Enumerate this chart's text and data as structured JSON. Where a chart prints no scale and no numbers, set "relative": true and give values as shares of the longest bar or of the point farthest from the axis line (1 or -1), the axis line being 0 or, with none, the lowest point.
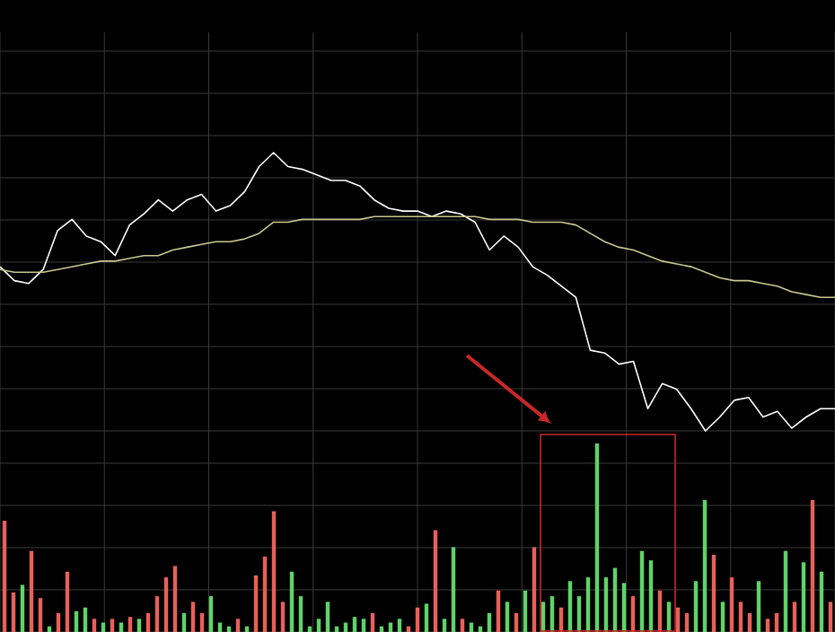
{
  "chart_data": [
    {
      "type": "line",
      "relative": true,
      "grid": true,
      "categories": [
        null,
        null,
        null,
        null,
        null,
        null,
        null,
        null,
        null,
        null,
        null,
        null,
        null,
        null,
        null,
        null,
        null,
        null,
        null,
        null,
        null,
        null,
        null,
        null,
        null,
        null,
        null,
        null,
        null,
        null,
        null,
        null,
        null,
        null,
        null,
        null,
        null,
        null,
        null,
        null,
        null,
        null,
        null,
        null,
        null,
        null,
        null,
        null,
        null,
        null,
        null,
        null,
        null,
        null,
        null,
        null,
        null,
        null,
        null
      ],
      "series": [
        {
          "color": "#ffffff",
          "values": [
            0.59,
            0.54,
            0.53,
            0.58,
            0.72,
            0.76,
            0.7,
            0.68,
            0.63,
            0.74,
            0.78,
            0.83,
            0.79,
            0.83,
            0.85,
            0.79,
            0.81,
            0.86,
            0.95,
            1.0,
            0.95,
            0.94,
            0.92,
            0.9,
            0.9,
            0.88,
            0.83,
            0.8,
            0.79,
            0.79,
            0.77,
            0.79,
            0.78,
            0.75,
            0.65,
            0.7,
            0.66,
            0.59,
            0.56,
            0.52,
            0.48,
            0.29,
            0.28,
            0.24,
            0.25,
            0.08,
            0.17,
            0.15,
            0.08,
            0.0,
            0.05,
            0.11,
            0.12,
            0.05,
            0.07,
            0.01,
            0.05,
            0.08,
            0.08
          ]
        },
        {
          "color": "#c8c890",
          "values": [
            0.58,
            0.57,
            0.57,
            0.57,
            0.58,
            0.59,
            0.6,
            0.61,
            0.61,
            0.62,
            0.63,
            0.63,
            0.65,
            0.66,
            0.67,
            0.68,
            0.68,
            0.69,
            0.71,
            0.75,
            0.75,
            0.76,
            0.76,
            0.76,
            0.76,
            0.76,
            0.77,
            0.77,
            0.77,
            0.77,
            0.77,
            0.77,
            0.77,
            0.77,
            0.76,
            0.76,
            0.76,
            0.75,
            0.75,
            0.75,
            0.74,
            0.71,
            0.68,
            0.66,
            0.65,
            0.63,
            0.61,
            0.6,
            0.59,
            0.57,
            0.55,
            0.54,
            0.54,
            0.53,
            0.52,
            0.5,
            0.49,
            0.48,
            0.48
          ]
        }
      ]
    },
    {
      "type": "bar",
      "relative": true,
      "grid": true,
      "categories": [
        null,
        null,
        null,
        null,
        null,
        null,
        null,
        null,
        null,
        null,
        null,
        null,
        null,
        null,
        null,
        null,
        null,
        null,
        null,
        null,
        null,
        null,
        null,
        null,
        null,
        null,
        null,
        null,
        null,
        null,
        null,
        null,
        null,
        null,
        null,
        null,
        null,
        null,
        null,
        null,
        null,
        null,
        null,
        null,
        null,
        null,
        null,
        null,
        null,
        null,
        null,
        null,
        null,
        null,
        null,
        null,
        null,
        null,
        null,
        null,
        null,
        null,
        null,
        null,
        null,
        null,
        null,
        null,
        null,
        null,
        null,
        null,
        null,
        null,
        null,
        null,
        null,
        null,
        null,
        null,
        null,
        null,
        null,
        null,
        null,
        null,
        null,
        null,
        null,
        null,
        null,
        null,
        null
      ],
      "values": [
        0.59,
        0.21,
        0.25,
        0.43,
        0.18,
        0.03,
        0.1,
        0.32,
        0.11,
        0.13,
        0.07,
        0.05,
        0.07,
        0.05,
        0.08,
        0.07,
        0.1,
        0.19,
        0.29,
        0.35,
        0.1,
        0.16,
        0.1,
        0.19,
        0.05,
        0.03,
        0.07,
        0.03,
        0.3,
        0.4,
        0.64,
        0.16,
        0.32,
        0.19,
        0.03,
        0.07,
        0.16,
        0.03,
        0.05,
        0.08,
        0.07,
        0.1,
        0.03,
        0.05,
        0.07,
        0.03,
        0.13,
        0.15,
        0.54,
        0.07,
        0.45,
        0.07,
        0.05,
        0.03,
        0.1,
        0.22,
        0.16,
        0.1,
        0.22,
        0.45,
        0.16,
        0.19,
        0.13,
        0.27,
        0.19,
        0.29,
        1.0,
        0.29,
        0.34,
        0.26,
        0.19,
        0.43,
        0.38,
        0.22,
        0.16,
        0.13,
        0.1,
        0.27,
        0.7,
        0.41,
        0.16,
        0.29,
        0.16,
        0.1,
        0.27,
        0.07,
        0.1,
        0.43,
        0.16,
        0.37,
        0.7,
        0.32,
        0.16
      ],
      "colors": [
        "#e8605a",
        "#e8605a",
        "#5fd36a",
        "#e8605a",
        "#e8605a",
        "#5fd36a",
        "#e8605a",
        "#e8605a",
        "#5fd36a",
        "#5fd36a",
        "#e8605a",
        "#5fd36a",
        "#e8605a",
        "#5fd36a",
        "#e8605a",
        "#5fd36a",
        "#e8605a",
        "#e8605a",
        "#e8605a",
        "#e8605a",
        "#5fd36a",
        "#e8605a",
        "#e8605a",
        "#5fd36a",
        "#5fd36a",
        "#5fd36a",
        "#e8605a",
        "#5fd36a",
        "#e8605a",
        "#e8605a",
        "#e8605a",
        "#e8605a",
        "#5fd36a",
        "#5fd36a",
        "#5fd36a",
        "#5fd36a",
        "#5fd36a",
        "#5fd36a",
        "#5fd36a",
        "#5fd36a",
        "#5fd36a",
        "#e8605a",
        "#5fd36a",
        "#5fd36a",
        "#5fd36a",
        "#e8605a",
        "#e8605a",
        "#5fd36a",
        "#e8605a",
        "#5fd36a",
        "#5fd36a",
        "#e8605a",
        "#5fd36a",
        "#5fd36a",
        "#5fd36a",
        "#e8605a",
        "#5fd36a",
        "#e8605a",
        "#5fd36a",
        "#e8605a",
        "#5fd36a",
        "#5fd36a",
        "#e8605a",
        "#5fd36a",
        "#5fd36a",
        "#5fd36a",
        "#5fd36a",
        "#5fd36a",
        "#5fd36a",
        "#5fd36a",
        "#e8605a",
        "#5fd36a",
        "#5fd36a",
        "#e8605a",
        "#5fd36a",
        "#e8605a",
        "#e8605a",
        "#5fd36a",
        "#5fd36a",
        "#e8605a",
        "#5fd36a",
        "#e8605a",
        "#e8605a",
        "#e8605a",
        "#5fd36a",
        "#e8605a",
        "#e8605a",
        "#5fd36a",
        "#e8605a",
        "#5fd36a",
        "#e8605a",
        "#5fd36a",
        "#e8605a"
      ]
    }
  ]
}
